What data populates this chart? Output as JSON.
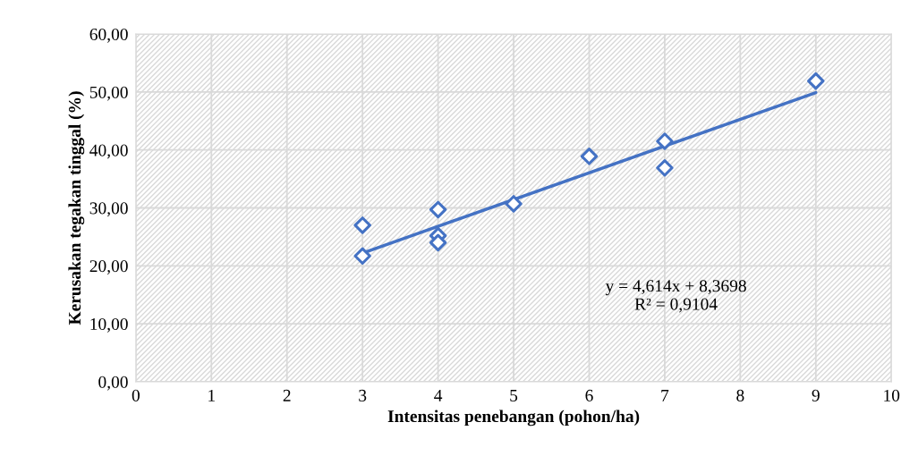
{
  "chart_data": {
    "type": "scatter",
    "xlabel": "Intensitas penebangan (pohon/ha)",
    "ylabel": "Kerusakan tegakan tinggal (%)",
    "xlim": [
      0,
      10
    ],
    "xticks": [
      0,
      1,
      2,
      3,
      4,
      5,
      6,
      7,
      8,
      9,
      10
    ],
    "ylim": [
      0,
      60
    ],
    "yticks": [
      {
        "value": 0,
        "label": "0,00"
      },
      {
        "value": 10,
        "label": "10,00"
      },
      {
        "value": 20,
        "label": "20,00"
      },
      {
        "value": 30,
        "label": "30,00"
      },
      {
        "value": 40,
        "label": "40,00"
      },
      {
        "value": 50,
        "label": "50,00"
      },
      {
        "value": 60,
        "label": "60,00"
      }
    ],
    "grid": true,
    "series": [
      {
        "marker": "diamond",
        "color": "#4472c4",
        "x": [
          3,
          3,
          4,
          4,
          4,
          5,
          6,
          7,
          7,
          9
        ],
        "values": [
          27.0,
          21.7,
          29.7,
          25.2,
          24.0,
          30.7,
          38.9,
          41.5,
          36.9,
          51.9
        ]
      },
      {
        "type": "line",
        "marker": "none",
        "color": "#4472c4",
        "x": [
          3,
          9
        ],
        "values": [
          22.2,
          49.9
        ]
      }
    ],
    "annotations": [
      "y = 4,614x + 8,3698\nR² = 0,9104"
    ]
  }
}
